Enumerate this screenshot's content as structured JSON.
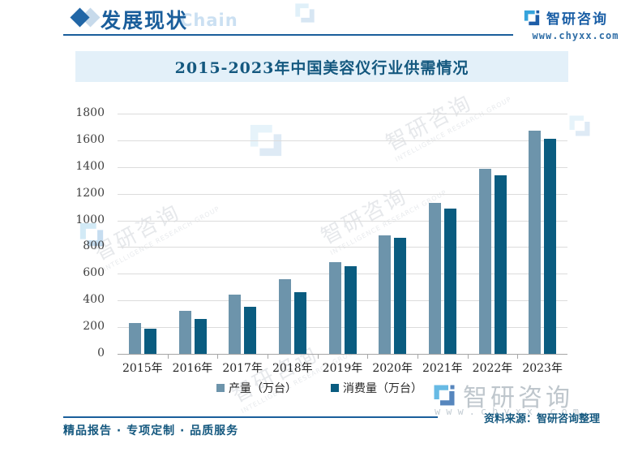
{
  "header": {
    "section_title": "发展现状",
    "section_subtitle": "Chain",
    "brand_name": "智研咨询",
    "brand_url": "www.chyxx.com"
  },
  "banner": {
    "title": "2015-2023年中国美容仪行业供需情况"
  },
  "chart_data": {
    "type": "bar",
    "title": "2015-2023年中国美容仪行业供需情况",
    "categories": [
      "2015年",
      "2016年",
      "2017年",
      "2018年",
      "2019年",
      "2020年",
      "2021年",
      "2022年",
      "2023年"
    ],
    "series": [
      {
        "name": "产量（万台）",
        "color": "#6D94AB",
        "values": [
          230,
          325,
          445,
          560,
          685,
          890,
          1130,
          1385,
          1670
        ]
      },
      {
        "name": "消费量（万台）",
        "color": "#0A5C80",
        "values": [
          190,
          260,
          350,
          465,
          655,
          870,
          1090,
          1335,
          1610
        ]
      }
    ],
    "xlabel": "",
    "ylabel": "",
    "ylim": [
      0,
      1800
    ],
    "ytick_step": 200,
    "grid": true,
    "legend_position": "bottom"
  },
  "footer": {
    "source": "资料来源：智研咨询整理",
    "services": "精品报告 · 专项定制 · 品质服务"
  },
  "watermark": {
    "brand": "智研咨询",
    "subtext": "INTELLIGENCE RESEARCH GROUP",
    "url": "www.chyxx.com"
  },
  "colors": {
    "accent": "#1A5E9B",
    "banner_bg": "#E3F0F9",
    "title_text": "#14587F",
    "series_production": "#6D94AB",
    "series_consumption": "#0A5C80",
    "gridline": "#DCDCDC"
  }
}
